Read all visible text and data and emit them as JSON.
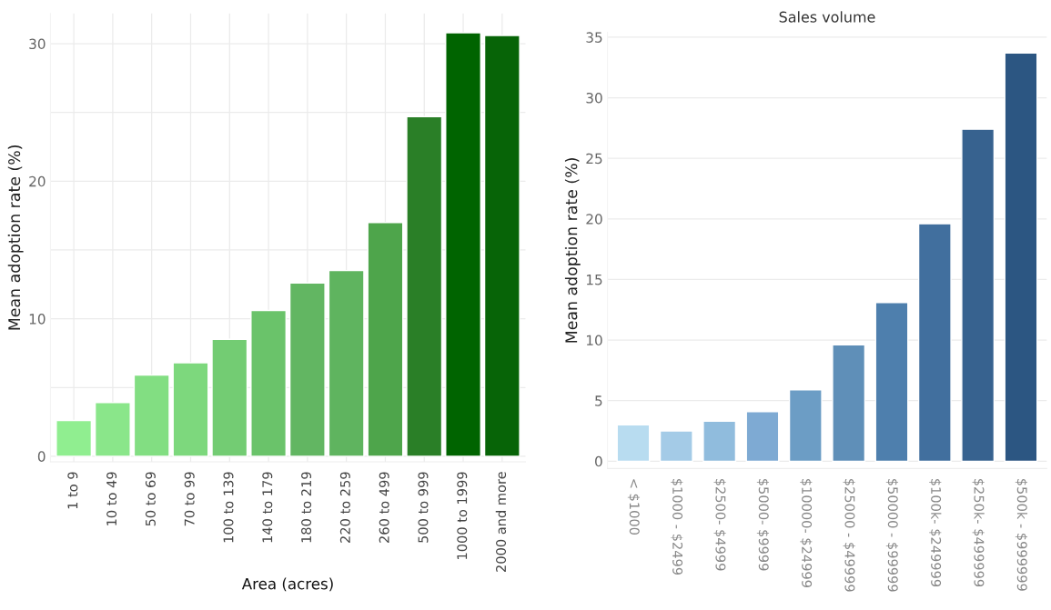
{
  "chart_data": [
    {
      "type": "bar",
      "xlabel": "Area (acres)",
      "ylabel": "Mean adoption rate (%)",
      "categories": [
        "1 to 9",
        "10 to 49",
        "50 to 69",
        "70 to 99",
        "100 to 139",
        "140 to 179",
        "180 to 219",
        "220 to 259",
        "260 to 499",
        "500 to 999",
        "1000 to 1999",
        "2000 and more"
      ],
      "values": [
        2.6,
        3.9,
        5.9,
        6.8,
        8.5,
        10.6,
        12.6,
        13.5,
        17.0,
        24.7,
        30.8,
        30.6
      ],
      "colors": [
        "#90ee90",
        "#8ae68a",
        "#82de82",
        "#7dd87d",
        "#73cc73",
        "#6ac36a",
        "#62b662",
        "#5fb45f",
        "#4ea54b",
        "#2a7f27",
        "#006400",
        "#076407"
      ],
      "ylim": [
        -0.4,
        32.2
      ],
      "yticks": [
        0,
        {
          "value": 5,
          "label": null
        },
        10,
        {
          "value": 15,
          "label": null
        },
        20,
        {
          "value": 25,
          "label": null
        },
        30
      ],
      "grid": true
    },
    {
      "type": "bar",
      "title": "Sales volume",
      "ylabel": "Mean adoption rate (%)",
      "categories": [
        "< $1000",
        "$1000 - $2499",
        "$2500- $4999",
        "$5000- $9999",
        "$10000- $24999",
        "$25000 - $49999",
        "$50000 - $99999",
        "$100k- $249999",
        "$250k- $499999",
        "$500k - $999999"
      ],
      "values": [
        3.0,
        2.5,
        3.3,
        4.1,
        5.9,
        9.6,
        13.1,
        19.6,
        27.4,
        33.7
      ],
      "colors": [
        "#b8dcf0",
        "#a4cbe7",
        "#90bcdd",
        "#7eaad3",
        "#6c9dc5",
        "#5f8fb8",
        "#4e7fad",
        "#416f9e",
        "#37628f",
        "#2c5682"
      ],
      "ylim": [
        -0.6,
        35.4
      ],
      "yticks": [
        0,
        5,
        10,
        15,
        20,
        25,
        30,
        35
      ],
      "grid": "y"
    }
  ]
}
